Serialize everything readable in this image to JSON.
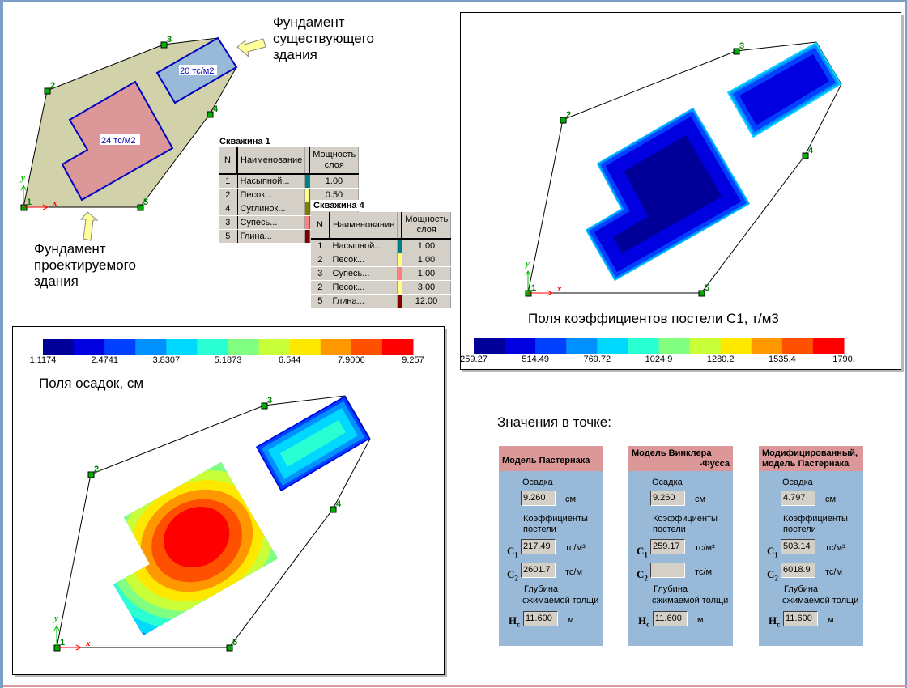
{
  "annotations": {
    "existing_foundation": [
      "Фундамент",
      "существующего",
      "здания"
    ],
    "designed_foundation": [
      "Фундамент",
      "проектируемого",
      "здания"
    ],
    "load_existing": "20 тс/м2",
    "load_designed": "24 тс/м2"
  },
  "plan_points": [
    "1",
    "2",
    "3",
    "4",
    "5"
  ],
  "axes": {
    "x": "x",
    "y": "y"
  },
  "boreholes": [
    {
      "title": "Скважина 1",
      "headers": [
        "N",
        "Наименование",
        "",
        "Мощность слоя"
      ],
      "rows": [
        {
          "n": "1",
          "name": "Насыпной...",
          "color": "#008080",
          "thickness": "1.00"
        },
        {
          "n": "2",
          "name": "Песок...",
          "color": "#ffff80",
          "thickness": "0.50"
        },
        {
          "n": "4",
          "name": "Суглинок...",
          "color": "#808000",
          "thickness": ""
        },
        {
          "n": "3",
          "name": "Супесь...",
          "color": "#ff8080",
          "thickness": ""
        },
        {
          "n": "5",
          "name": "Глина...",
          "color": "#800000",
          "thickness": ""
        }
      ]
    },
    {
      "title": "Скважина 4",
      "headers": [
        "N",
        "Наименование",
        "",
        "Мощность слоя"
      ],
      "rows": [
        {
          "n": "1",
          "name": "Насыпной...",
          "color": "#008080",
          "thickness": "1.00"
        },
        {
          "n": "2",
          "name": "Песок...",
          "color": "#ffff80",
          "thickness": "1.00"
        },
        {
          "n": "3",
          "name": "Супесь...",
          "color": "#ff8080",
          "thickness": "1.00"
        },
        {
          "n": "2",
          "name": "Песок...",
          "color": "#ffff80",
          "thickness": "3.00"
        },
        {
          "n": "5",
          "name": "Глина...",
          "color": "#800000",
          "thickness": "12.00"
        }
      ]
    }
  ],
  "palette": [
    "#000099",
    "#0000e0",
    "#0040ff",
    "#0090ff",
    "#00d8ff",
    "#2affd4",
    "#80ff80",
    "#c8ff38",
    "#ffe800",
    "#ff9800",
    "#ff5000",
    "#ff0000"
  ],
  "settlement_field": {
    "title": "Поля осадок, см",
    "legend_labels": [
      "1.1174",
      "2.4741",
      "3.8307",
      "5.1873",
      "6.544",
      "7.9006",
      "9.257"
    ]
  },
  "bedding_field": {
    "title": "Поля коэффициентов постели С1, т/м3",
    "legend_labels": [
      "259.27",
      "514.49",
      "769.72",
      "1024.9",
      "1280.2",
      "1535.4",
      "1790."
    ]
  },
  "point_values": {
    "title": "Значения в точке:",
    "labels": {
      "settlement": "Осадка",
      "coefs": [
        "Коэффициенты",
        "постели"
      ],
      "depth": [
        "Глубина",
        "сжимаемой толщи"
      ],
      "unit_cm": "см",
      "unit_c1": "тс/м³",
      "unit_c2": "тс/м",
      "unit_m": "м",
      "c1": "C",
      "c2": "C",
      "hc": "H"
    },
    "models": [
      {
        "title": [
          "Модель Пастернака"
        ],
        "settlement": "9.260",
        "c1": "217.49",
        "c2": "2601.7",
        "hc": "11.600"
      },
      {
        "title": [
          "Модель Винклера",
          "-Фусса"
        ],
        "settlement": "9.260",
        "c1": "259.17",
        "c2": "",
        "hc": "11.600"
      },
      {
        "title": [
          "Модифицированный,",
          "модель Пастернака"
        ],
        "settlement": "4.797",
        "c1": "503.14",
        "c2": "6018.9",
        "hc": "11.600"
      }
    ]
  }
}
